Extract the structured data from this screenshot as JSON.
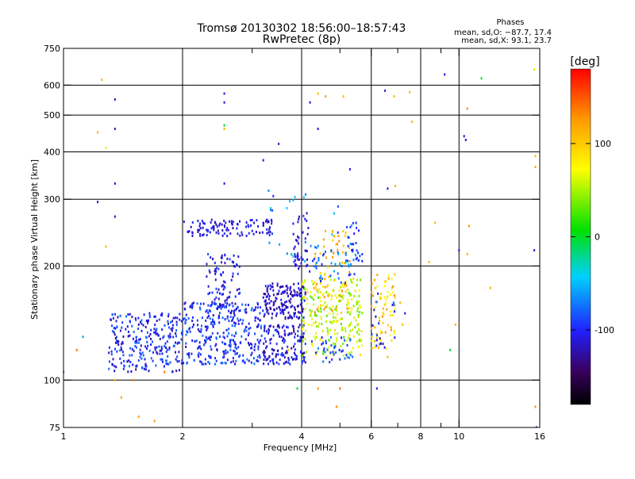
{
  "chart_data": {
    "type": "scatter",
    "title": "Tromsø 20130302 18:56:00–18:57:43",
    "subtitle": "RwPretec (8p)",
    "xlabel": "Frequency [MHz]",
    "ylabel": "Stationary phase Virtual Height [km]",
    "x_scale": "log",
    "y_scale": "log",
    "xlim": [
      1,
      16
    ],
    "ylim": [
      75,
      750
    ],
    "x_ticks": [
      1,
      2,
      4,
      6,
      8,
      10,
      16
    ],
    "x_minor_ticks": [
      3,
      5,
      7,
      9
    ],
    "y_ticks": [
      75,
      100,
      200,
      300,
      400,
      500,
      600,
      750
    ],
    "x_grid": [
      2,
      4,
      6,
      8,
      10
    ],
    "y_grid": [
      100,
      200,
      300,
      400,
      500,
      600
    ],
    "grid": true,
    "phases_box": {
      "title": "Phases",
      "line_o": "mean, sd,O: −87.7, 17.4",
      "line_x": "mean, sd,X:  93.1, 23.7"
    },
    "colorbar": {
      "label": "[deg]",
      "range": [
        -180,
        180
      ],
      "ticks": [
        100,
        0,
        -100
      ],
      "colormap": "rainbow (black–purple–blue–cyan–green–yellow–orange–red)"
    },
    "series": [
      {
        "kind": "clusters",
        "clusters": [
          {
            "x": [
              1.3,
              2.0
            ],
            "y": [
              105,
              150
            ],
            "phase": -100,
            "n": 260,
            "spread": 7
          },
          {
            "x": [
              2.0,
              3.2
            ],
            "y": [
              110,
              160
            ],
            "phase": -95,
            "n": 320,
            "spread": 6
          },
          {
            "x": [
              2.3,
              2.8
            ],
            "y": [
              150,
              215
            ],
            "phase": -105,
            "n": 90,
            "spread": 5
          },
          {
            "x": [
              2.0,
              3.4
            ],
            "y": [
              240,
              265
            ],
            "phase": -110,
            "n": 110,
            "spread": 4
          },
          {
            "x": [
              3.2,
              4.1
            ],
            "y": [
              110,
              140
            ],
            "phase": -110,
            "n": 150,
            "spread": 6
          },
          {
            "x": [
              3.2,
              4.1
            ],
            "y": [
              145,
              180
            ],
            "phase": -115,
            "n": 160,
            "spread": 5
          },
          {
            "x": [
              3.8,
              4.2
            ],
            "y": [
              190,
              280
            ],
            "phase": -110,
            "n": 45,
            "spread": 3
          },
          {
            "x": [
              4.0,
              5.7
            ],
            "y": [
              115,
              185
            ],
            "phase": 60,
            "n": 240,
            "spread": 9
          },
          {
            "x": [
              4.3,
              5.3
            ],
            "y": [
              150,
              250
            ],
            "phase": 110,
            "n": 70,
            "spread": 6
          },
          {
            "x": [
              4.3,
              5.5
            ],
            "y": [
              180,
              230
            ],
            "phase": -80,
            "n": 40,
            "spread": 6
          },
          {
            "x": [
              4.2,
              5.4
            ],
            "y": [
              110,
              130
            ],
            "phase": -90,
            "n": 40,
            "spread": 6
          },
          {
            "x": [
              5.2,
              5.7
            ],
            "y": [
              200,
              260
            ],
            "phase": -95,
            "n": 25,
            "spread": 3
          },
          {
            "x": [
              6.0,
              6.9
            ],
            "y": [
              120,
              190
            ],
            "phase": 100,
            "n": 70,
            "spread": 8
          },
          {
            "x": [
              6.0,
              6.9
            ],
            "y": [
              120,
              170
            ],
            "phase": -100,
            "n": 20,
            "spread": 6
          },
          {
            "x": [
              3.3,
              5.5
            ],
            "y": [
              200,
              320
            ],
            "phase": -60,
            "n": 35,
            "spread": 10
          }
        ],
        "isolated_points": [
          [
            1.25,
            620,
            110
          ],
          [
            1.35,
            550,
            -110
          ],
          [
            1.35,
            460,
            -110
          ],
          [
            1.22,
            450,
            110
          ],
          [
            1.28,
            410,
            60
          ],
          [
            1.35,
            330,
            -110
          ],
          [
            1.22,
            295,
            -110
          ],
          [
            1.35,
            270,
            -110
          ],
          [
            1.28,
            225,
            110
          ],
          [
            1.12,
            130,
            -60
          ],
          [
            1.08,
            120,
            140
          ],
          [
            1.0,
            105,
            -110
          ],
          [
            1.35,
            100,
            110
          ],
          [
            1.4,
            90,
            120
          ],
          [
            1.55,
            80,
            120
          ],
          [
            1.7,
            78,
            120
          ],
          [
            2.55,
            570,
            -110
          ],
          [
            2.55,
            540,
            -110
          ],
          [
            2.55,
            470,
            0
          ],
          [
            2.55,
            460,
            110
          ],
          [
            2.55,
            330,
            -110
          ],
          [
            3.2,
            380,
            -110
          ],
          [
            3.5,
            420,
            -110
          ],
          [
            4.2,
            540,
            -110
          ],
          [
            4.4,
            570,
            110
          ],
          [
            4.6,
            560,
            120
          ],
          [
            4.4,
            460,
            -110
          ],
          [
            5.1,
            560,
            110
          ],
          [
            5.3,
            360,
            -110
          ],
          [
            6.5,
            580,
            -110
          ],
          [
            6.85,
            560,
            110
          ],
          [
            7.5,
            575,
            110
          ],
          [
            9.2,
            640,
            -110
          ],
          [
            11.4,
            625,
            0
          ],
          [
            10.5,
            520,
            130
          ],
          [
            10.3,
            440,
            -110
          ],
          [
            10.4,
            430,
            -110
          ],
          [
            7.6,
            480,
            110
          ],
          [
            6.9,
            325,
            110
          ],
          [
            6.6,
            320,
            -110
          ],
          [
            10.6,
            255,
            130
          ],
          [
            10.0,
            220,
            -110
          ],
          [
            10.5,
            215,
            110
          ],
          [
            8.7,
            260,
            110
          ],
          [
            8.4,
            205,
            110
          ],
          [
            9.8,
            140,
            110
          ],
          [
            9.5,
            120,
            0
          ],
          [
            12.0,
            175,
            110
          ],
          [
            15.5,
            660,
            60
          ],
          [
            15.6,
            390,
            110
          ],
          [
            15.6,
            365,
            120
          ],
          [
            15.5,
            220,
            -110
          ],
          [
            15.6,
            85,
            130
          ],
          [
            15.7,
            75,
            -110
          ],
          [
            7.3,
            150,
            -110
          ],
          [
            7.1,
            160,
            110
          ],
          [
            7.2,
            140,
            110
          ],
          [
            5.0,
            95,
            140
          ],
          [
            4.9,
            85,
            130
          ],
          [
            6.2,
            95,
            -110
          ],
          [
            6.6,
            115,
            110
          ],
          [
            1.65,
            150,
            -110
          ],
          [
            1.5,
            100,
            130
          ],
          [
            1.8,
            105,
            140
          ],
          [
            3.7,
            120,
            110
          ],
          [
            3.9,
            95,
            0
          ],
          [
            4.4,
            95,
            130
          ]
        ]
      }
    ]
  }
}
